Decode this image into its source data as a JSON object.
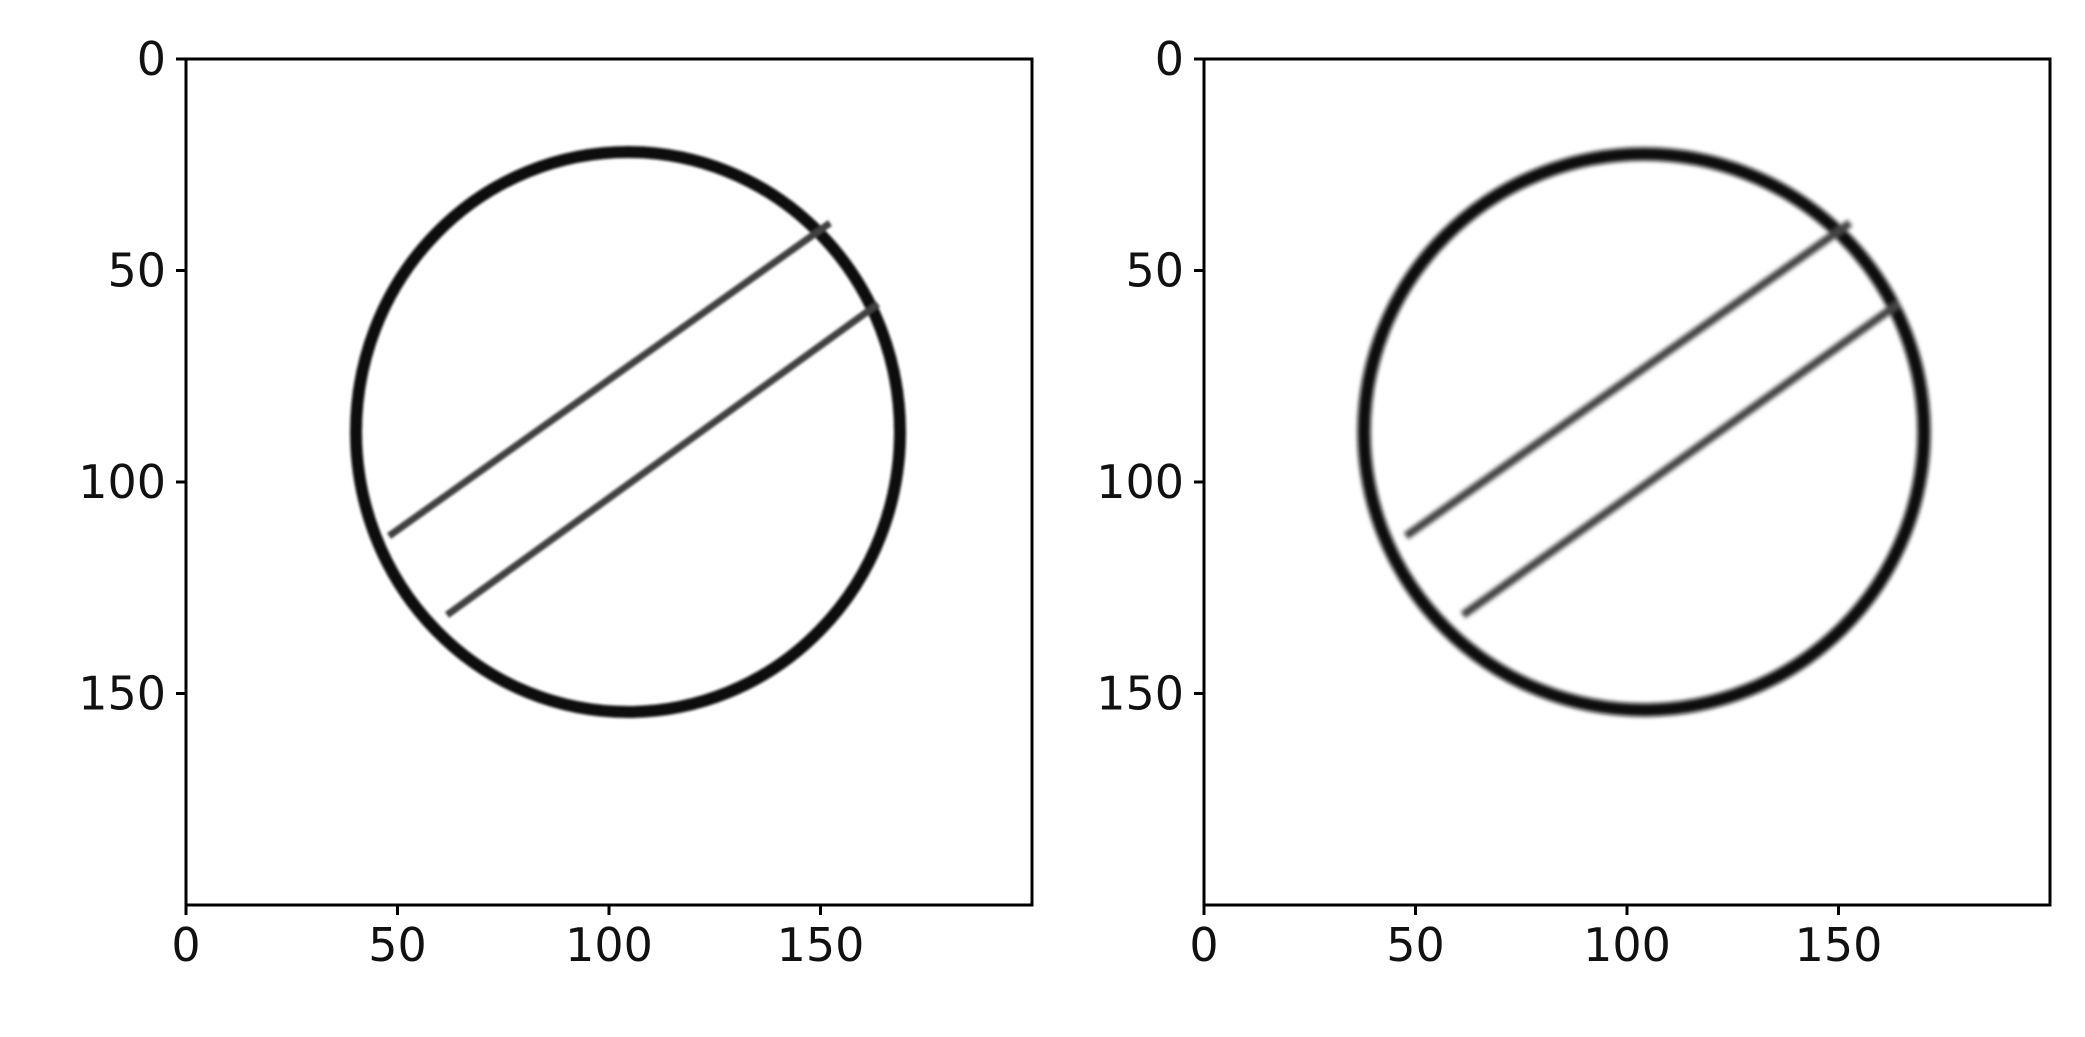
{
  "figure": {
    "panels": [
      {
        "name": "left-image-panel",
        "x_ticks": [
          "0",
          "50",
          "100",
          "150"
        ],
        "y_ticks": [
          "0",
          "50",
          "100",
          "150"
        ]
      },
      {
        "name": "right-image-panel",
        "x_ticks": [
          "0",
          "50",
          "100",
          "150"
        ],
        "y_ticks": [
          "0",
          "50",
          "100",
          "150"
        ]
      }
    ],
    "image": {
      "subject": "circle with diagonal band",
      "xlim": [
        0,
        200
      ],
      "ylim": [
        200,
        0
      ]
    }
  }
}
